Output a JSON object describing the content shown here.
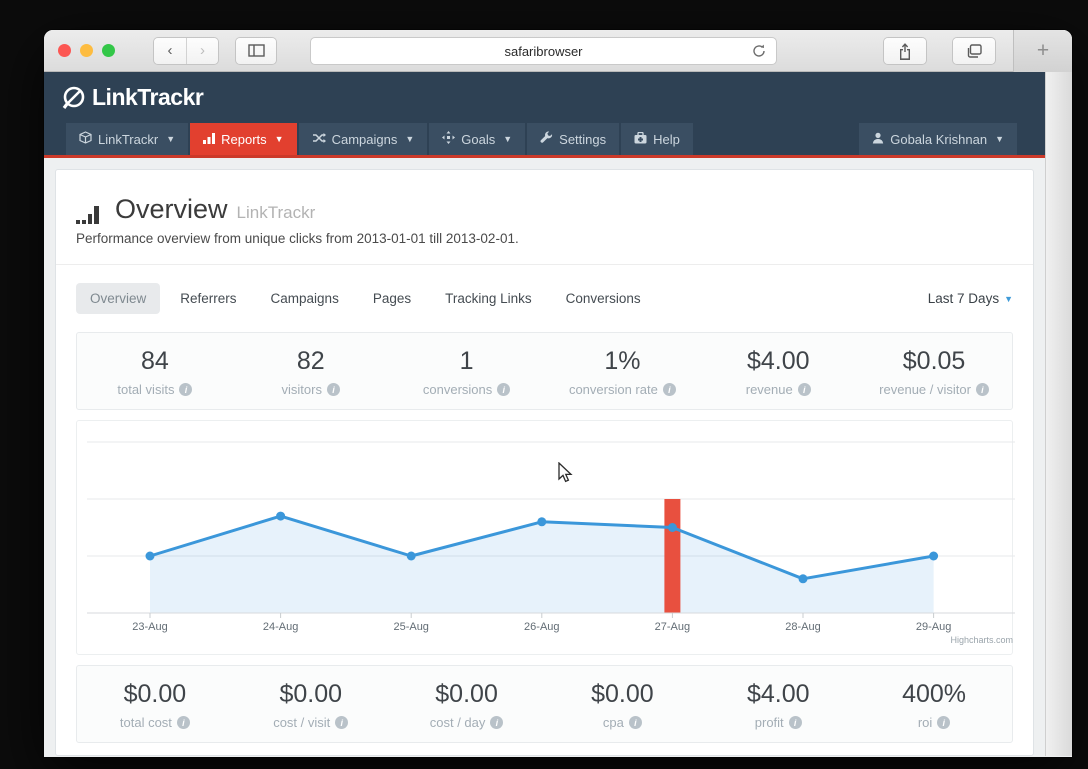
{
  "browser": {
    "url_text": "safaribrowser",
    "back_label": "‹",
    "forward_label": "›",
    "new_tab_label": "+"
  },
  "header": {
    "logo_text": "LinkTrackr"
  },
  "nav": {
    "items": [
      {
        "label": "LinkTrackr",
        "icon": "cube-icon",
        "caret": true,
        "active": false
      },
      {
        "label": "Reports",
        "icon": "bar-chart-icon",
        "caret": true,
        "active": true
      },
      {
        "label": "Campaigns",
        "icon": "shuffle-icon",
        "caret": true,
        "active": false
      },
      {
        "label": "Goals",
        "icon": "goals-icon",
        "caret": true,
        "active": false
      },
      {
        "label": "Settings",
        "icon": "wrench-icon",
        "caret": false,
        "active": false
      },
      {
        "label": "Help",
        "icon": "medkit-icon",
        "caret": false,
        "active": false
      }
    ],
    "user": {
      "label": "Gobala Krishnan",
      "icon": "user-icon",
      "caret": true
    }
  },
  "page": {
    "title": "Overview",
    "title_suffix": "LinkTrackr",
    "subtitle": "Performance overview from unique clicks from 2013-01-01 till 2013-02-01."
  },
  "tabs": {
    "items": [
      {
        "label": "Overview",
        "active": true
      },
      {
        "label": "Referrers",
        "active": false
      },
      {
        "label": "Campaigns",
        "active": false
      },
      {
        "label": "Pages",
        "active": false
      },
      {
        "label": "Tracking Links",
        "active": false
      },
      {
        "label": "Conversions",
        "active": false
      }
    ],
    "range_selector": "Last 7 Days"
  },
  "stats_top": [
    {
      "value": "84",
      "label": "total visits"
    },
    {
      "value": "82",
      "label": "visitors"
    },
    {
      "value": "1",
      "label": "conversions"
    },
    {
      "value": "1%",
      "label": "conversion rate"
    },
    {
      "value": "$4.00",
      "label": "revenue"
    },
    {
      "value": "$0.05",
      "label": "revenue / visitor"
    }
  ],
  "stats_bottom": [
    {
      "value": "$0.00",
      "label": "total cost"
    },
    {
      "value": "$0.00",
      "label": "cost / visit"
    },
    {
      "value": "$0.00",
      "label": "cost / day"
    },
    {
      "value": "$0.00",
      "label": "cpa"
    },
    {
      "value": "$4.00",
      "label": "profit"
    },
    {
      "value": "400%",
      "label": "roi"
    }
  ],
  "chart_data": {
    "type": "line",
    "x": [
      "23-Aug",
      "24-Aug",
      "25-Aug",
      "26-Aug",
      "27-Aug",
      "28-Aug",
      "29-Aug"
    ],
    "series": [
      {
        "name": "visits",
        "type": "area-line",
        "color": "#3b97da",
        "fill": "rgba(59,151,218,0.12)",
        "values": [
          10,
          17,
          10,
          16,
          15,
          6,
          10
        ]
      },
      {
        "name": "highlight-column",
        "type": "bar",
        "color": "#e8503f",
        "x": "27-Aug",
        "value": 20
      }
    ],
    "ylim": [
      0,
      30
    ],
    "gridline_values": [
      10,
      20,
      30
    ],
    "grid": true,
    "legend": false,
    "credit": "Highcharts.com"
  },
  "colors": {
    "navy_header": "#2e4154",
    "navy_item": "#3a4e62",
    "accent_red": "#e2402f",
    "underline_red": "#cc3929",
    "chart_blue": "#3b97da",
    "chart_red_bar": "#e8503f",
    "traffic_red": "#fc5753",
    "traffic_yellow": "#fdbc40",
    "traffic_green": "#33c748"
  }
}
